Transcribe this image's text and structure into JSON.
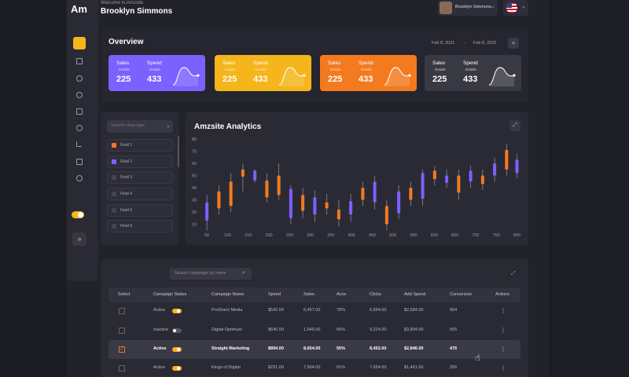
{
  "logo": "Am",
  "header": {
    "welcome": "Welcome to Amzsite",
    "user_name": "Brooklyn Simmons",
    "profile_name": "Brooklyn Simmons"
  },
  "overview": {
    "title": "Overview",
    "date_from": "Feb 8, 2021",
    "date_separator": "-",
    "date_to": "Feb 8, 2022",
    "cards": [
      {
        "sales_label": "Sales",
        "sales_sub": "Details",
        "sales": 225,
        "spend_label": "Spend",
        "spend_sub": "Details",
        "spend": 433,
        "color": "#7b61ff"
      },
      {
        "sales_label": "Sales",
        "sales_sub": "Details",
        "sales": 225,
        "spend_label": "Spend",
        "spend_sub": "Details",
        "spend": 433,
        "color": "#f5b51b"
      },
      {
        "sales_label": "Sales",
        "sales_sub": "Details",
        "sales": 225,
        "spend_label": "Spend",
        "spend_sub": "Details",
        "spend": 433,
        "color": "#f47a1f"
      },
      {
        "sales_label": "Sales",
        "sales_sub": "Details",
        "sales": 225,
        "spend_label": "Spend",
        "spend_sub": "Details",
        "spend": 433,
        "color": "#393944"
      }
    ]
  },
  "filter": {
    "search_placeholder": "Search chart type",
    "fields": [
      {
        "label": "Field 1",
        "color": "#f47a1f"
      },
      {
        "label": "Field 2",
        "color": "#7b61ff"
      },
      {
        "label": "Field 3",
        "color": "#44444f"
      },
      {
        "label": "Field 4",
        "color": "#44444f"
      },
      {
        "label": "Field 5",
        "color": "#44444f"
      },
      {
        "label": "Field 6",
        "color": "#44444f"
      }
    ]
  },
  "chart_data": {
    "type": "candlestick",
    "title": "Amzsite Analytics",
    "up_color": "#f47a1f",
    "down_color": "#7b61ff",
    "x": [
      50,
      79,
      108,
      137,
      166,
      195,
      224,
      253,
      282,
      311,
      340,
      369,
      398,
      427,
      456,
      485,
      514,
      543,
      572,
      601,
      630,
      659,
      688,
      717,
      746,
      775,
      800
    ],
    "open": [
      28,
      23,
      25,
      49,
      54,
      32,
      34,
      39,
      21,
      32,
      23,
      14,
      29,
      30,
      45,
      10,
      37,
      30,
      52,
      47,
      50,
      36,
      54,
      43,
      60,
      55,
      63
    ],
    "close": [
      13,
      37,
      45,
      55,
      46,
      46,
      50,
      15,
      34,
      18,
      28,
      22,
      18,
      40,
      28,
      25,
      19,
      40,
      31,
      54,
      44,
      50,
      45,
      50,
      50,
      71,
      52
    ],
    "high": [
      34,
      42,
      52,
      60,
      55,
      52,
      60,
      42,
      40,
      38,
      35,
      30,
      35,
      45,
      50,
      30,
      42,
      45,
      55,
      58,
      55,
      55,
      58,
      55,
      65,
      76,
      68
    ],
    "low": [
      5,
      18,
      20,
      37,
      44,
      28,
      30,
      10,
      15,
      12,
      18,
      8,
      12,
      25,
      22,
      5,
      14,
      25,
      25,
      42,
      40,
      30,
      40,
      38,
      45,
      50,
      48
    ],
    "xlim": [
      25,
      820
    ],
    "xticks": [
      50,
      100,
      150,
      200,
      250,
      300,
      350,
      400,
      450,
      500,
      550,
      600,
      650,
      700,
      750,
      800
    ],
    "ylim": [
      0,
      80
    ],
    "yticks": [
      10,
      20,
      30,
      40,
      50,
      60,
      70,
      80
    ],
    "grid": false
  },
  "table": {
    "search_placeholder": "Search campaign by name",
    "columns": [
      "Select",
      "Campaign Status",
      "Campaign Name",
      "Spend",
      "Sales",
      "Acos",
      "Clicks",
      "Add Spend",
      "Conversion",
      "Actions"
    ],
    "rows": [
      {
        "selected": false,
        "on": true,
        "cells": [
          "Active",
          "ProDirect Media",
          "$542.00",
          "6,457.00",
          "78%",
          "6,654.00",
          "$2,584.00",
          "894"
        ]
      },
      {
        "selected": false,
        "on": false,
        "cells": [
          "Inactive",
          "Digital Optimum",
          "$645.00",
          "1,645.00",
          "65%",
          "9,224.00",
          "$3,894.00",
          "565"
        ]
      },
      {
        "selected": true,
        "on": true,
        "cells": [
          "Active",
          "Straight Marketing",
          "$894.00",
          "8,654.00",
          "55%",
          "8,452.00",
          "$2,846.00",
          "476"
        ]
      },
      {
        "selected": false,
        "on": true,
        "cells": [
          "Active",
          "Kings of Digital",
          "$231.00",
          "7,564.00",
          "61%",
          "7,654.00",
          "$1,461.00",
          "256"
        ]
      }
    ]
  }
}
